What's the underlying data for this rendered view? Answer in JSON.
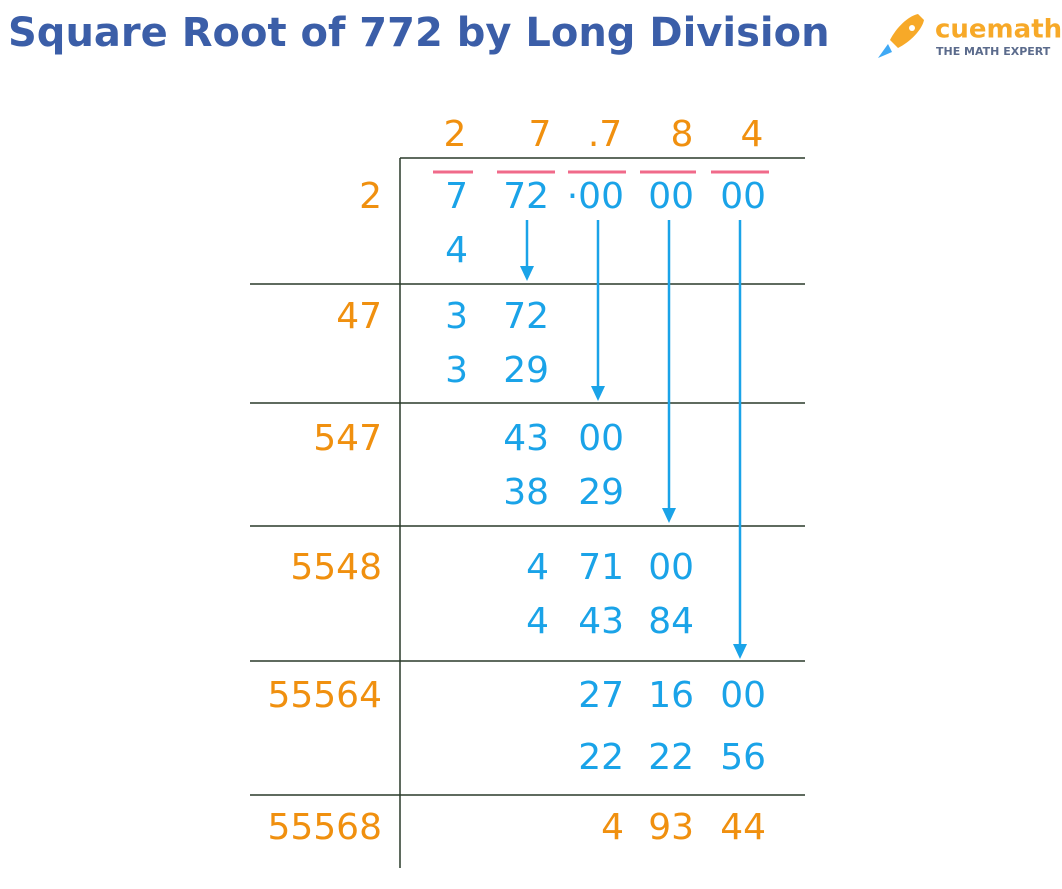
{
  "header": {
    "title": "Square Root of 772 by Long Division",
    "brand": "cuemath",
    "tagline": "THE MATH EXPERT"
  },
  "quotient": [
    "2",
    "7",
    ".7",
    "8",
    "4"
  ],
  "rows": [
    {
      "divisor": "2",
      "lines": [
        [
          "7",
          "72",
          "·00",
          "00",
          "00"
        ],
        [
          "4"
        ]
      ]
    },
    {
      "divisor": "47",
      "lines": [
        [
          "3",
          "72"
        ],
        [
          "3",
          "29"
        ]
      ]
    },
    {
      "divisor": "547",
      "lines": [
        [
          "43",
          "00"
        ],
        [
          "38",
          "29"
        ]
      ]
    },
    {
      "divisor": "5548",
      "lines": [
        [
          "4",
          "71",
          "00"
        ],
        [
          "4",
          "43",
          "84"
        ]
      ]
    },
    {
      "divisor": "55564",
      "lines": [
        [
          "27",
          "16",
          "00"
        ],
        [
          "22",
          "22",
          "56"
        ]
      ]
    },
    {
      "divisor": "55568",
      "lines": [
        [
          "4",
          "93",
          "44"
        ]
      ]
    }
  ]
}
